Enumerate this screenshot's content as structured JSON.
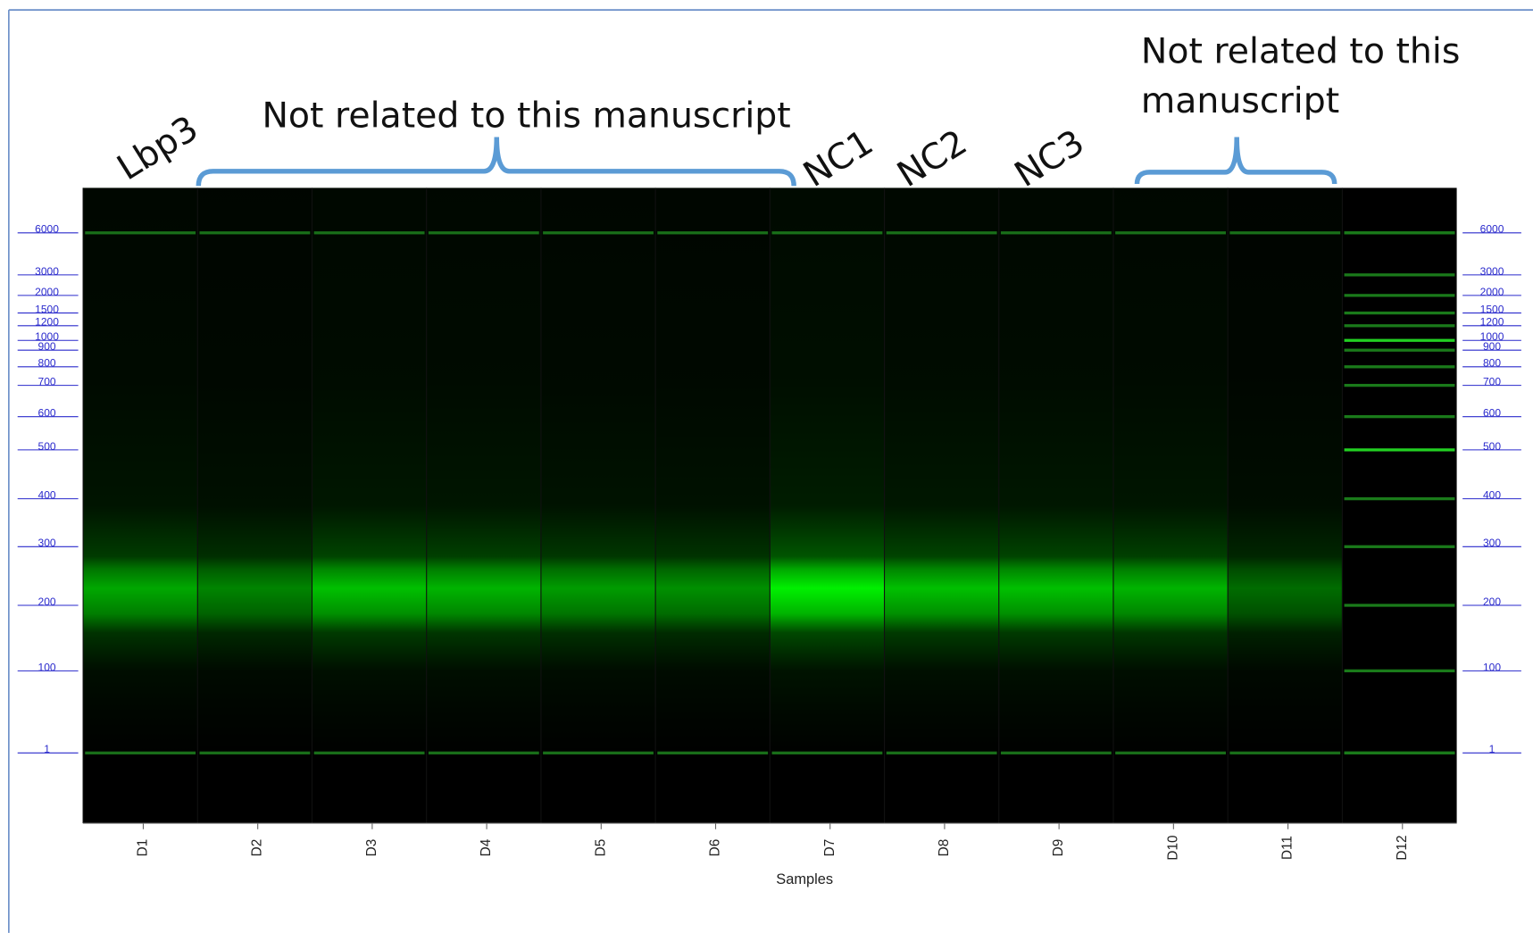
{
  "annotations": {
    "lane_name": "Lbp3",
    "group_note_left": "Not related to this manuscript",
    "nc_labels": [
      "NC1",
      "NC2",
      "NC3"
    ],
    "group_note_right": [
      "Not related to this",
      "manuscript"
    ]
  },
  "lanes": [
    "D1",
    "D2",
    "D3",
    "D4",
    "D5",
    "D6",
    "D7",
    "D8",
    "D9",
    "D10",
    "D11",
    "D12"
  ],
  "x_axis_label": "Samples",
  "size_ladder": [
    6000,
    3000,
    2000,
    1500,
    1200,
    1000,
    900,
    800,
    700,
    600,
    500,
    400,
    300,
    200,
    100,
    1
  ]
}
